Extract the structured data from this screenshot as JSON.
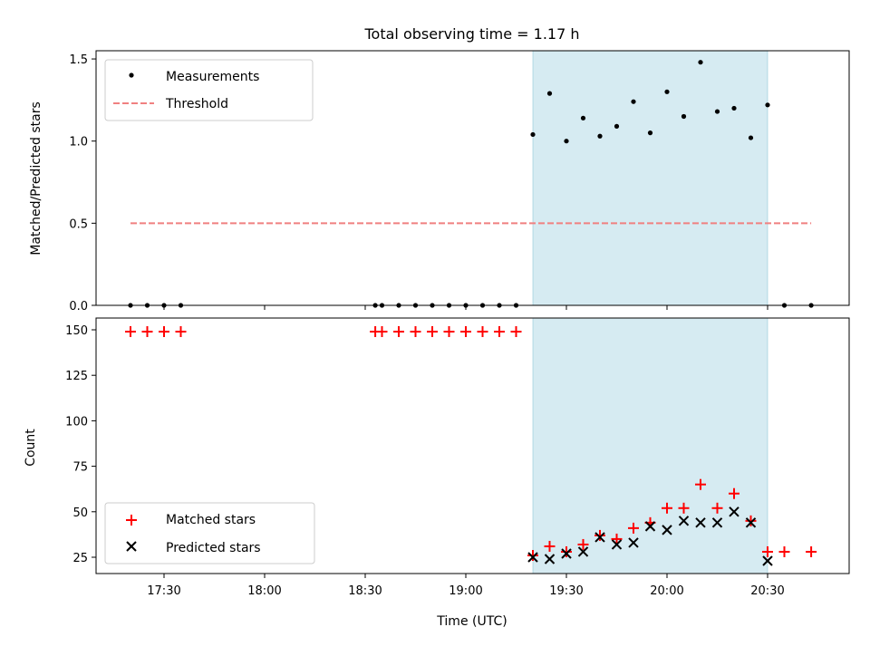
{
  "chart_data": [
    {
      "type": "scatter",
      "title": "Total observing time = 1.17 h",
      "xlabel": "",
      "ylabel": "Matched/Predicted stars",
      "ylim": [
        0,
        1.55
      ],
      "yticks": [
        "0.0",
        "0.5",
        "1.0",
        "1.5"
      ],
      "shaded_interval": [
        "19:20",
        "20:30"
      ],
      "legend_position": "upper-left",
      "series": [
        {
          "name": "Measurements",
          "marker": "dot",
          "color": "#000000",
          "x": [
            "17:20",
            "17:25",
            "17:30",
            "17:35",
            "18:33",
            "18:35",
            "18:40",
            "18:45",
            "18:50",
            "18:55",
            "19:00",
            "19:05",
            "19:10",
            "19:15",
            "19:20",
            "19:25",
            "19:30",
            "19:35",
            "19:40",
            "19:45",
            "19:50",
            "19:55",
            "20:00",
            "20:05",
            "20:10",
            "20:15",
            "20:20",
            "20:25",
            "20:30",
            "20:35",
            "20:43"
          ],
          "y": [
            0,
            0,
            0,
            0,
            0,
            0,
            0,
            0,
            0,
            0,
            0,
            0,
            0,
            0,
            1.04,
            1.29,
            1.0,
            1.14,
            1.03,
            1.09,
            1.24,
            1.05,
            1.3,
            1.15,
            1.48,
            1.18,
            1.2,
            1.02,
            1.22,
            0,
            0
          ]
        },
        {
          "name": "Threshold",
          "marker": "dashed-line",
          "color": "#f08080",
          "x": [
            "17:20",
            "20:43"
          ],
          "y": [
            0.5,
            0.5
          ]
        }
      ]
    },
    {
      "type": "scatter",
      "title": "",
      "xlabel": "Time (UTC)",
      "ylabel": "Count",
      "ylim": [
        17,
        155
      ],
      "yticks": [
        "25",
        "50",
        "75",
        "100",
        "125",
        "150"
      ],
      "xticks": [
        "17:30",
        "18:00",
        "18:30",
        "19:00",
        "19:30",
        "20:00",
        "20:30"
      ],
      "shaded_interval": [
        "19:20",
        "20:30"
      ],
      "legend_position": "lower-left",
      "series": [
        {
          "name": "Matched stars",
          "marker": "plus",
          "color": "#ff0000",
          "x": [
            "17:20",
            "17:25",
            "17:30",
            "17:35",
            "18:33",
            "18:35",
            "18:40",
            "18:45",
            "18:50",
            "18:55",
            "19:00",
            "19:05",
            "19:10",
            "19:15",
            "19:20",
            "19:25",
            "19:30",
            "19:35",
            "19:40",
            "19:45",
            "19:50",
            "19:55",
            "20:00",
            "20:05",
            "20:10",
            "20:15",
            "20:20",
            "20:25",
            "20:30",
            "20:35",
            "20:43"
          ],
          "y": [
            149,
            149,
            149,
            149,
            149,
            149,
            149,
            149,
            149,
            149,
            149,
            149,
            149,
            149,
            26,
            31,
            28,
            32,
            37,
            35,
            41,
            44,
            52,
            52,
            65,
            52,
            60,
            45,
            28,
            28,
            28
          ]
        },
        {
          "name": "Predicted stars",
          "marker": "x",
          "color": "#000000",
          "x": [
            "19:20",
            "19:25",
            "19:30",
            "19:35",
            "19:40",
            "19:45",
            "19:50",
            "19:55",
            "20:00",
            "20:05",
            "20:10",
            "20:15",
            "20:20",
            "20:25",
            "20:30"
          ],
          "y": [
            25,
            24,
            27,
            28,
            36,
            32,
            33,
            42,
            40,
            45,
            44,
            44,
            50,
            44,
            23
          ]
        }
      ]
    }
  ]
}
